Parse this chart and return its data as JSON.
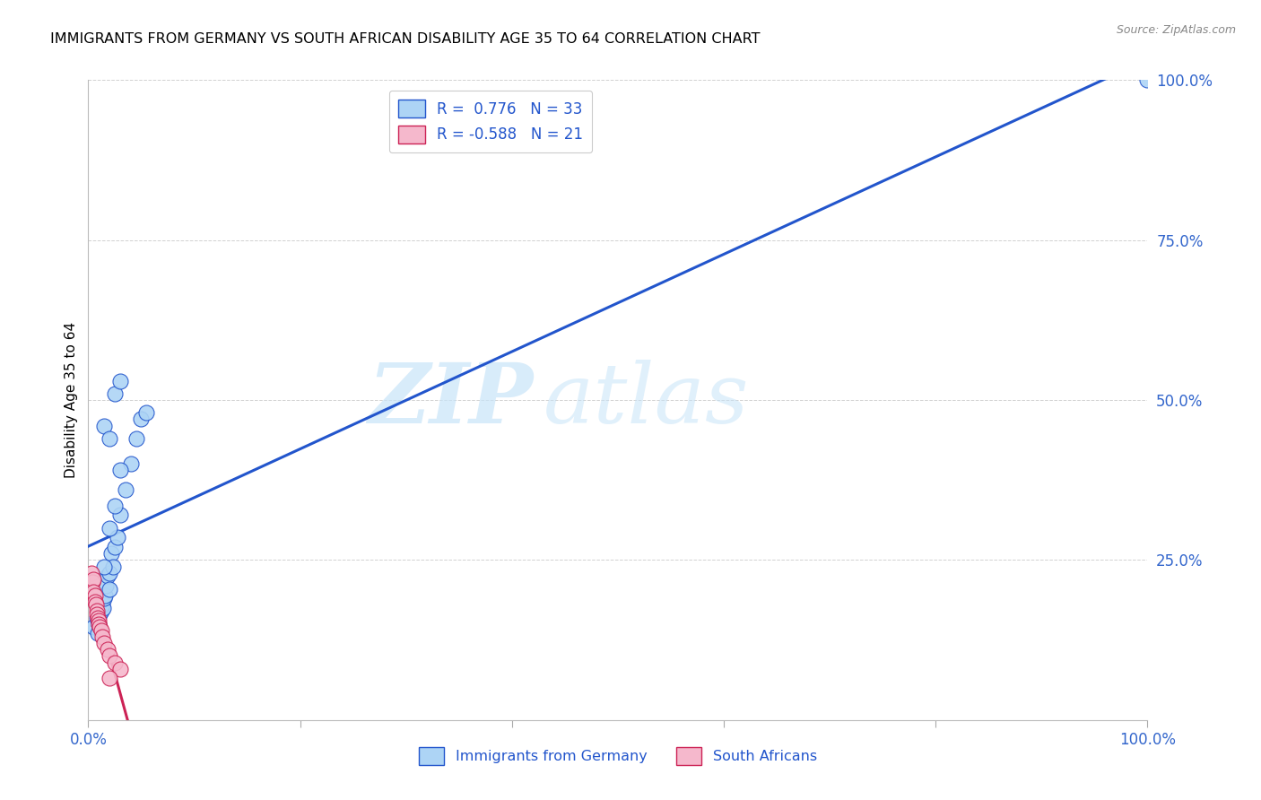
{
  "title": "IMMIGRANTS FROM GERMANY VS SOUTH AFRICAN DISABILITY AGE 35 TO 64 CORRELATION CHART",
  "source": "Source: ZipAtlas.com",
  "ylabel": "Disability Age 35 to 64",
  "legend_blue_label": "Immigrants from Germany",
  "legend_pink_label": "South Africans",
  "r_blue": 0.776,
  "n_blue": 33,
  "r_pink": -0.588,
  "n_pink": 21,
  "blue_dots": [
    [
      0.5,
      14.5
    ],
    [
      0.8,
      16.0
    ],
    [
      0.9,
      13.5
    ],
    [
      1.0,
      15.0
    ],
    [
      1.1,
      16.5
    ],
    [
      1.2,
      17.0
    ],
    [
      1.3,
      18.0
    ],
    [
      1.4,
      17.5
    ],
    [
      1.5,
      19.0
    ],
    [
      1.6,
      19.5
    ],
    [
      1.7,
      21.0
    ],
    [
      1.8,
      22.5
    ],
    [
      2.0,
      23.0
    ],
    [
      2.0,
      20.5
    ],
    [
      2.2,
      26.0
    ],
    [
      2.3,
      24.0
    ],
    [
      2.5,
      27.0
    ],
    [
      2.8,
      28.5
    ],
    [
      3.0,
      32.0
    ],
    [
      3.5,
      36.0
    ],
    [
      4.0,
      40.0
    ],
    [
      4.5,
      44.0
    ],
    [
      5.0,
      47.0
    ],
    [
      5.5,
      48.0
    ],
    [
      1.5,
      46.0
    ],
    [
      2.0,
      44.0
    ],
    [
      2.5,
      51.0
    ],
    [
      3.0,
      53.0
    ],
    [
      1.5,
      24.0
    ],
    [
      2.0,
      30.0
    ],
    [
      2.5,
      33.5
    ],
    [
      3.0,
      39.0
    ],
    [
      100.0,
      100.0
    ]
  ],
  "pink_dots": [
    [
      0.3,
      23.0
    ],
    [
      0.4,
      21.5
    ],
    [
      0.5,
      22.0
    ],
    [
      0.5,
      20.0
    ],
    [
      0.6,
      19.5
    ],
    [
      0.6,
      18.5
    ],
    [
      0.7,
      18.0
    ],
    [
      0.8,
      17.0
    ],
    [
      0.8,
      16.5
    ],
    [
      0.9,
      16.0
    ],
    [
      1.0,
      15.5
    ],
    [
      1.0,
      15.0
    ],
    [
      1.1,
      14.5
    ],
    [
      1.2,
      14.0
    ],
    [
      1.3,
      13.0
    ],
    [
      1.5,
      12.0
    ],
    [
      1.8,
      11.0
    ],
    [
      2.0,
      10.0
    ],
    [
      2.5,
      9.0
    ],
    [
      3.0,
      8.0
    ],
    [
      2.0,
      6.5
    ]
  ],
  "blue_color": "#ADD4F5",
  "pink_color": "#F5B8CC",
  "blue_line_color": "#2255CC",
  "pink_line_color": "#CC2255",
  "watermark_zip": "ZIP",
  "watermark_atlas": "atlas",
  "background_color": "#FFFFFF",
  "grid_color": "#CCCCCC",
  "tick_color": "#3366CC",
  "xlim": [
    0,
    100
  ],
  "ylim": [
    0,
    100
  ],
  "xticks": [
    0,
    20,
    40,
    60,
    80,
    100
  ],
  "yticks": [
    0,
    25,
    50,
    75,
    100
  ]
}
